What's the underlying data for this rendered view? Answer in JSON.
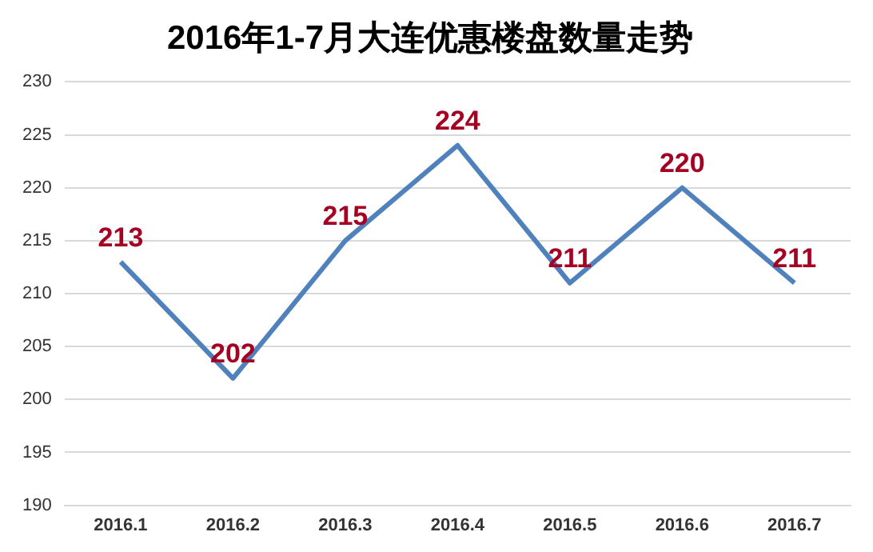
{
  "chart_data": {
    "type": "line",
    "title": "2016年1-7月大连优惠楼盘数量走势",
    "categories": [
      "2016.1",
      "2016.2",
      "2016.3",
      "2016.4",
      "2016.5",
      "2016.6",
      "2016.7"
    ],
    "series": [
      {
        "color": "#4f81bd",
        "values": [
          213,
          202,
          215,
          224,
          211,
          220,
          211
        ]
      }
    ],
    "ylim": [
      190,
      230
    ],
    "yticks": [
      190,
      195,
      200,
      205,
      210,
      215,
      220,
      225,
      230
    ],
    "grid": "y",
    "legend": false,
    "marker": "none",
    "line_style": "solid",
    "data_labels": true
  }
}
